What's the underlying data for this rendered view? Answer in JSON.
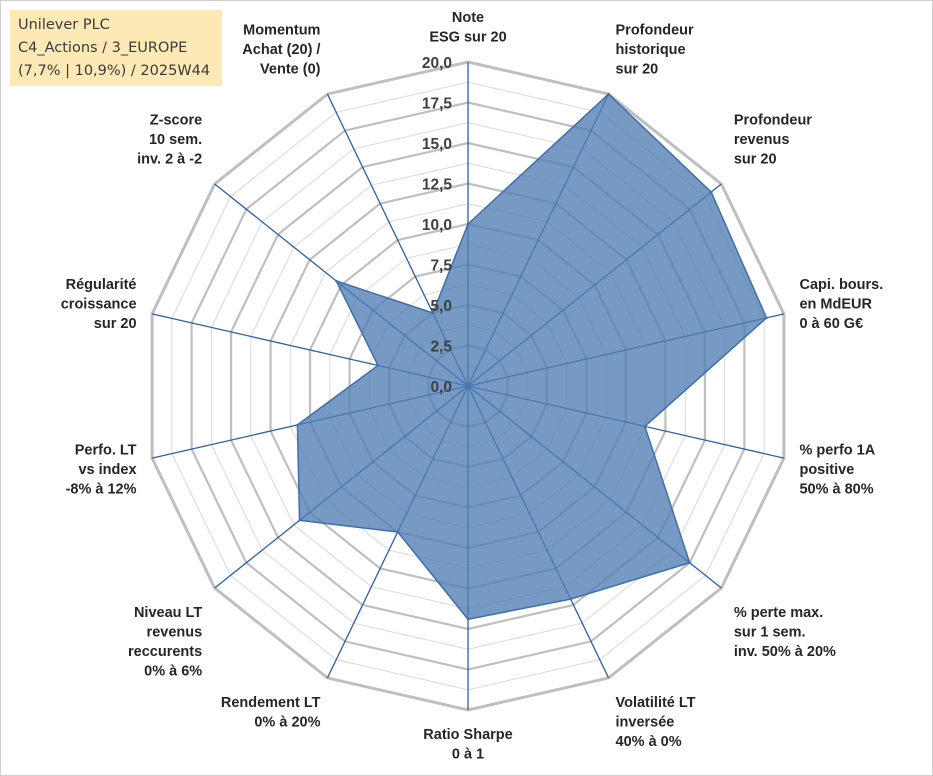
{
  "info_box": {
    "line1": "Unilever PLC",
    "line2": "C4_Actions / 3_EUROPE",
    "line3": "(7,7% | 10,9%) / 2025W44"
  },
  "colors": {
    "series_fill": "#4f7db3",
    "series_stroke": "#3f6ea8",
    "spoke": "#2f5fa8",
    "grid_major": "#bfbfbf",
    "grid_minor": "#d9d9d9",
    "info_bg": "#fde9b6"
  },
  "chart_data": {
    "type": "radar",
    "title": "",
    "range": [
      0,
      20
    ],
    "ticks": [
      "0,0",
      "2,5",
      "5,0",
      "7,5",
      "10,0",
      "12,5",
      "15,0",
      "17,5",
      "20,0"
    ],
    "categories": [
      [
        "Note",
        "ESG sur 20"
      ],
      [
        "Profondeur",
        "historique",
        "sur 20"
      ],
      [
        "Profondeur",
        "revenus",
        "sur 20"
      ],
      [
        "Capi. bours.",
        "en MdEUR",
        "0 à 60 G€"
      ],
      [
        "% perfo 1A",
        "positive",
        "50% à 80%"
      ],
      [
        "% perte max.",
        "sur 1 sem.",
        "inv. 50% à 20%"
      ],
      [
        "Volatilité LT",
        "inversée",
        "40% à 0%"
      ],
      [
        "Ratio Sharpe",
        "0 à 1"
      ],
      [
        "Rendement LT",
        "0% à 20%"
      ],
      [
        "Niveau LT",
        "revenus",
        "reccurents",
        "0% à 6%"
      ],
      [
        "Perfo. LT",
        "vs index",
        "-8% à 12%"
      ],
      [
        "Régularité",
        "croissance",
        "sur 20"
      ],
      [
        "Z-score",
        "10 sem.",
        "inv. 2 à -2"
      ],
      [
        "Momentum",
        "Achat (20) /",
        "Vente (0)"
      ]
    ],
    "series": [
      {
        "name": "Unilever PLC",
        "values": [
          10,
          20,
          19.2,
          18.9,
          11.2,
          17.5,
          14.6,
          14.4,
          10,
          13.3,
          10.8,
          5.7,
          10.4,
          5
        ]
      }
    ]
  }
}
